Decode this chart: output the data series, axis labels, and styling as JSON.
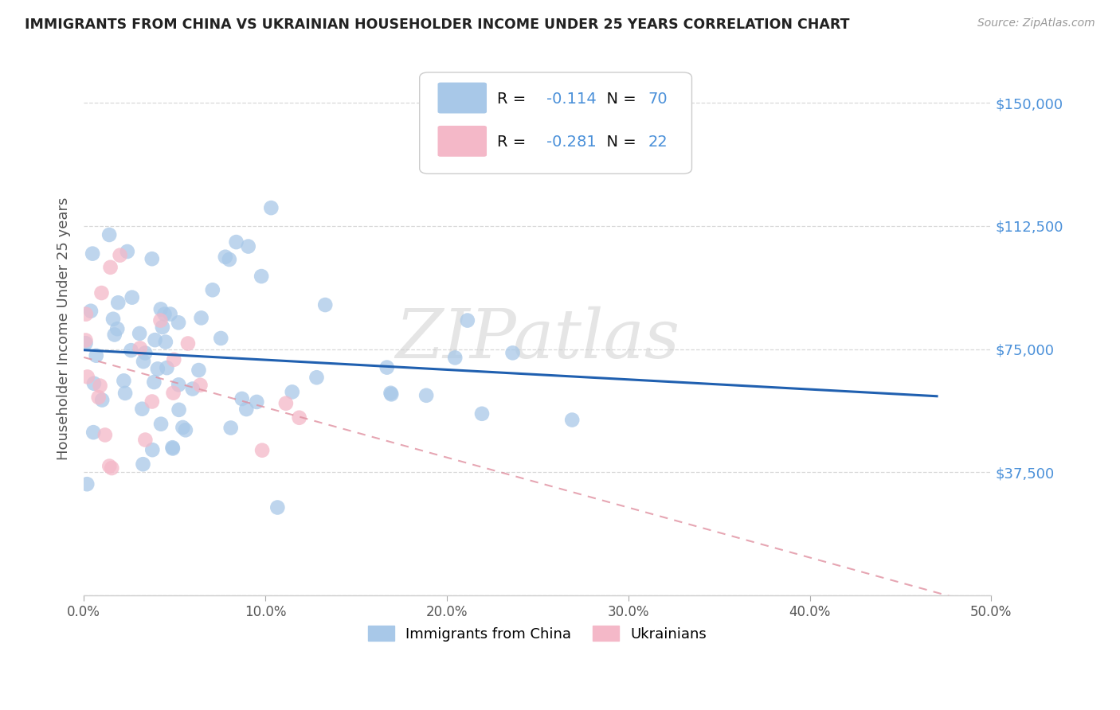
{
  "title": "IMMIGRANTS FROM CHINA VS UKRAINIAN HOUSEHOLDER INCOME UNDER 25 YEARS CORRELATION CHART",
  "source": "Source: ZipAtlas.com",
  "ylabel": "Householder Income Under 25 years",
  "xlim": [
    0.0,
    0.5
  ],
  "ylim": [
    0,
    162500
  ],
  "ytick_vals": [
    0,
    37500,
    75000,
    112500,
    150000
  ],
  "ytick_labels": [
    "",
    "$37,500",
    "$75,000",
    "$112,500",
    "$150,000"
  ],
  "xtick_vals": [
    0.0,
    0.1,
    0.2,
    0.3,
    0.4,
    0.5
  ],
  "xtick_labels": [
    "0.0%",
    "10.0%",
    "20.0%",
    "30.0%",
    "40.0%",
    "50.0%"
  ],
  "r_china": -0.114,
  "n_china": 70,
  "r_ukraine": -0.281,
  "n_ukraine": 22,
  "legend_labels": [
    "Immigrants from China",
    "Ukrainians"
  ],
  "color_china": "#a8c8e8",
  "color_ukraine": "#f4b8c8",
  "line_color_china": "#2060b0",
  "line_color_ukraine": "#e090a0",
  "background_color": "#ffffff",
  "watermark": "ZIPatlas",
  "title_color": "#222222",
  "source_color": "#999999",
  "ytick_color": "#4a90d9",
  "text_color": "#333333",
  "grid_color": "#d8d8d8",
  "legend_r_n_color": "#111111",
  "legend_val_color": "#4a90d9"
}
